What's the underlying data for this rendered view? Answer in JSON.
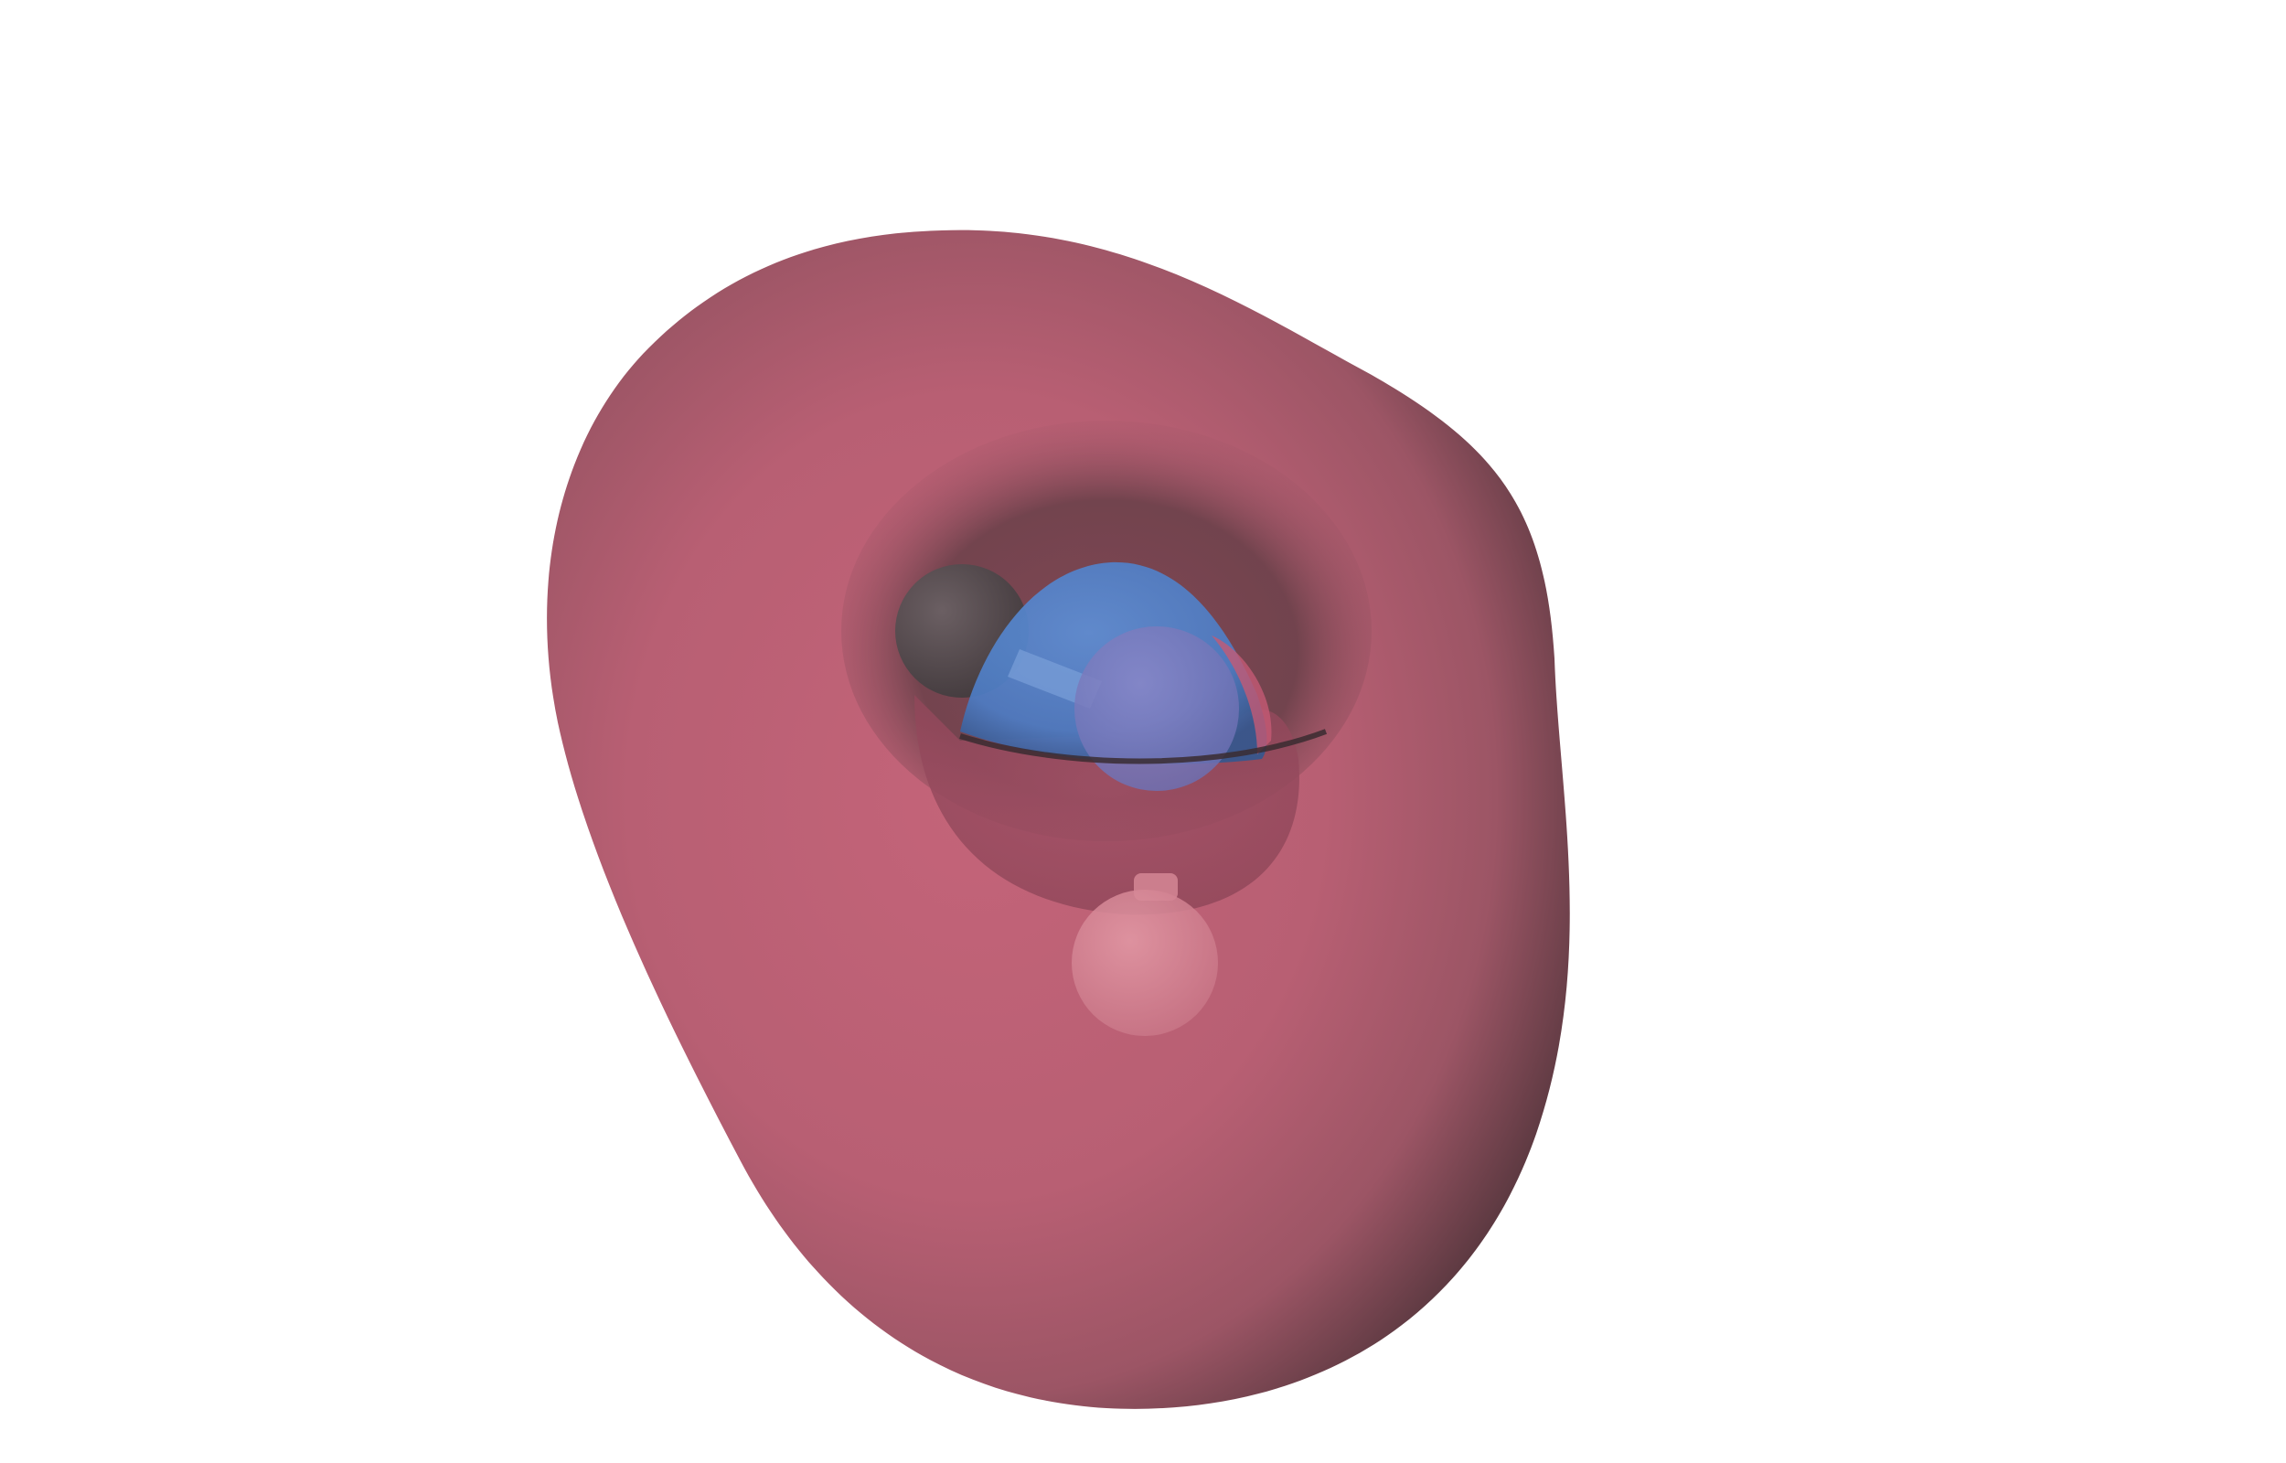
{
  "scene": {
    "background": "#ffffff",
    "colors": {
      "positive_lobe": "#bb6074",
      "positive_lobe_dark": "#5e3a42",
      "negative_lobe": "#4f7ec7",
      "negative_lobe_highlight": "#6f95d6",
      "atom_dark": "#4a4548",
      "atom_light": "#d98a98",
      "atom_blue": "#7b7fbf"
    },
    "objects": [
      "orbital-isosurface-positive",
      "orbital-isosurface-negative",
      "atom-upper-left",
      "atom-center-right",
      "atom-lower",
      "bond-stick"
    ]
  }
}
